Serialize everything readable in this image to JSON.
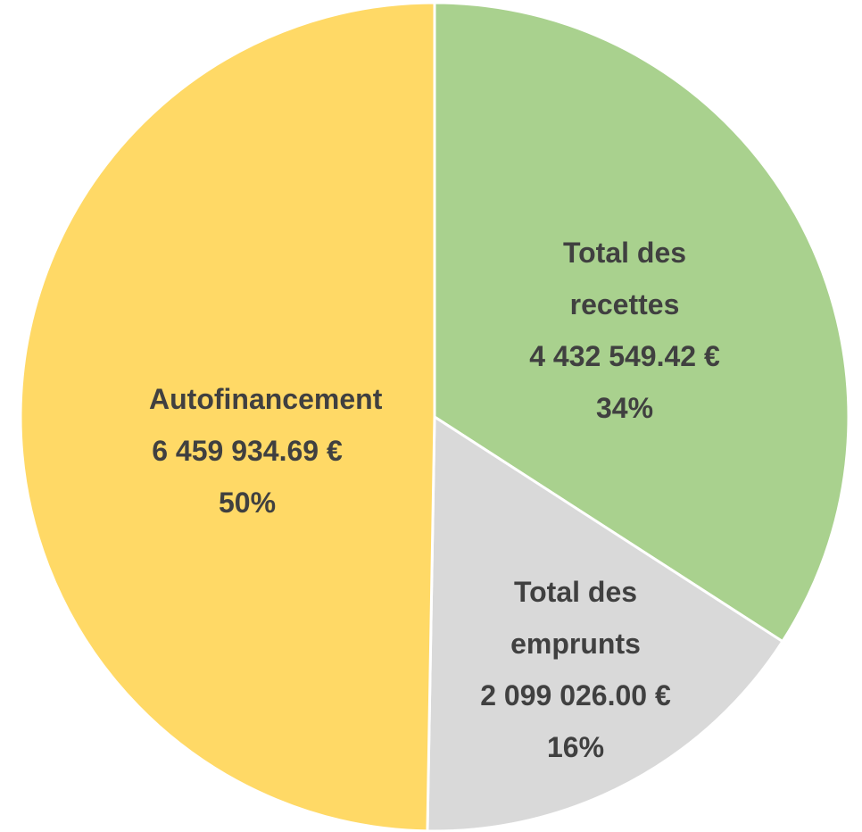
{
  "chart_data": {
    "type": "pie",
    "categories": [
      "Total des recettes",
      "Total des emprunts",
      "Autofinancement"
    ],
    "values": [
      4432549.42,
      2099026.0,
      6459934.69
    ],
    "value_labels": [
      "4 432 549.42 €",
      "2 099 026.00 €",
      "6 459 934.69 €"
    ],
    "percent_labels": [
      "34%",
      "16%",
      "50%"
    ],
    "colors": [
      "#a9d18e",
      "#d9d9d9",
      "#ffd966"
    ]
  }
}
